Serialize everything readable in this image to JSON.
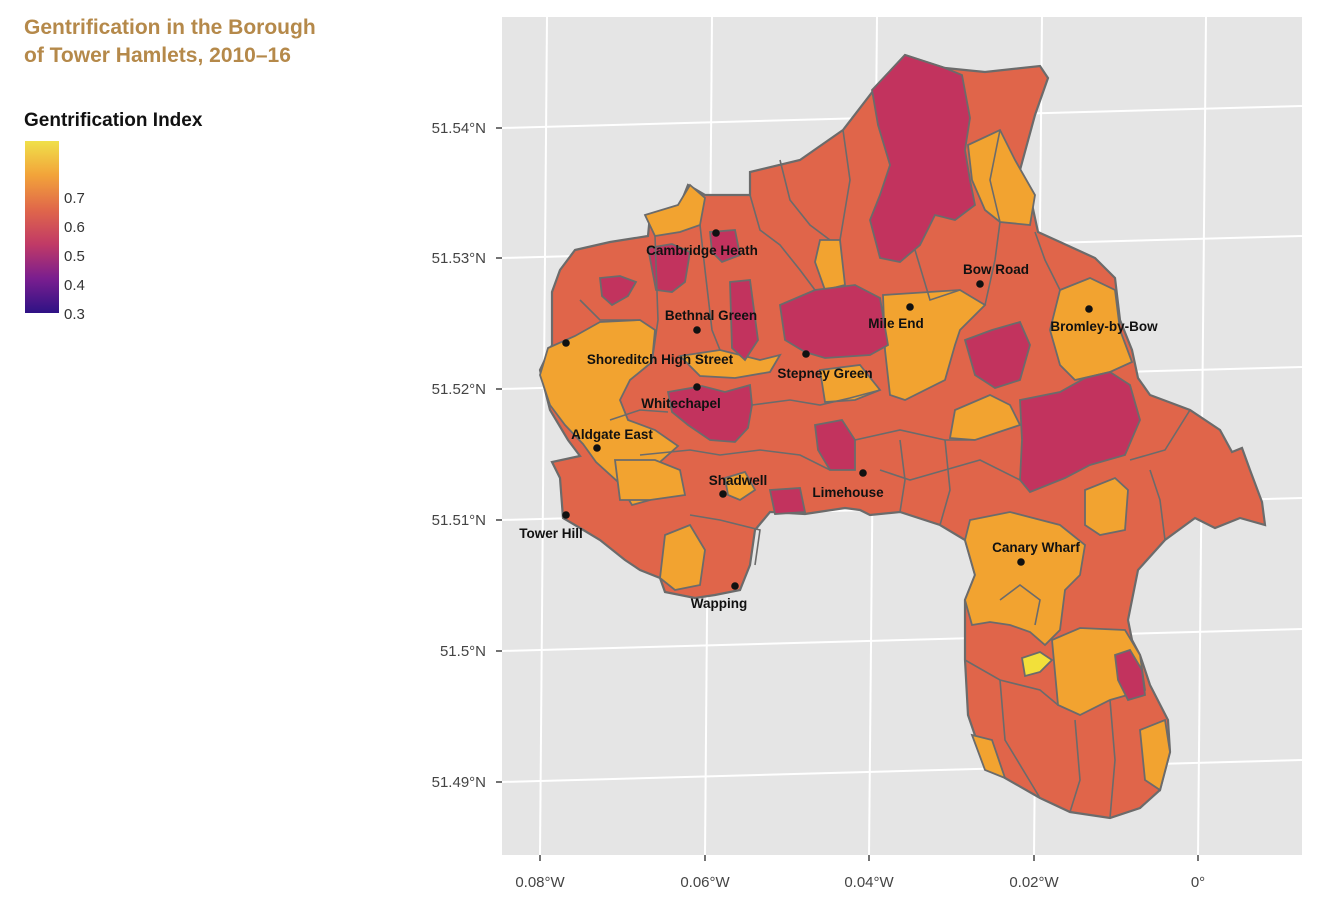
{
  "title": {
    "line1": "Gentrification in the Borough",
    "line2": "of Tower Hamlets, 2010–16",
    "color": "#B5894A"
  },
  "legend": {
    "title": "Gentrification Index",
    "ticks": [
      "0.7",
      "0.6",
      "0.5",
      "0.4",
      "0.3"
    ],
    "gradient": [
      "#F0E04A",
      "#F2A33A",
      "#E0674A",
      "#C13A66",
      "#7A1E8F",
      "#2E1285"
    ]
  },
  "map": {
    "background": "#E5E5E5",
    "grid_color": "#FFFFFF",
    "boundary_color": "#6B6B6B",
    "fill_colors": {
      "high": "#F2A330",
      "mid": "#E0654A",
      "low": "#C2335E",
      "peak": "#F2E03A"
    },
    "x_ticks": [
      "0.08°W",
      "0.06°W",
      "0.04°W",
      "0.02°W",
      "0°"
    ],
    "y_ticks": [
      "51.54°N",
      "51.53°N",
      "51.52°N",
      "51.51°N",
      "51.5°N",
      "51.49°N"
    ],
    "stations": [
      {
        "name": "Cambridge Heath"
      },
      {
        "name": "Bow Road"
      },
      {
        "name": "Bethnal Green"
      },
      {
        "name": "Mile End"
      },
      {
        "name": "Bromley-by-Bow"
      },
      {
        "name": "Shoreditch High Street"
      },
      {
        "name": "Stepney Green"
      },
      {
        "name": "Whitechapel"
      },
      {
        "name": "Aldgate East"
      },
      {
        "name": "Shadwell"
      },
      {
        "name": "Limehouse"
      },
      {
        "name": "Tower Hill"
      },
      {
        "name": "Canary Wharf"
      },
      {
        "name": "Wapping"
      }
    ]
  }
}
